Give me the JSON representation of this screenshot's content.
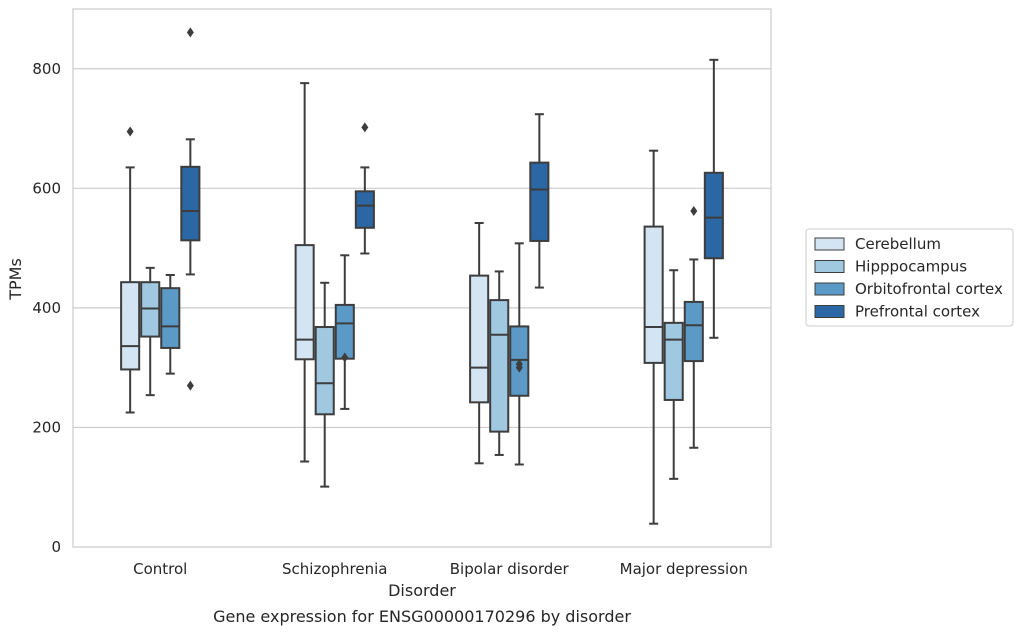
{
  "chart_data": {
    "type": "boxplot",
    "title": "",
    "caption": "Gene expression for ENSG00000170296 by disorder",
    "xlabel": "Disorder",
    "ylabel": "TPMs",
    "ylim": [
      0,
      900
    ],
    "yticks": [
      0,
      200,
      400,
      600,
      800
    ],
    "grid": "horizontal",
    "legend_position": "right",
    "categories": [
      "Control",
      "Schizophrenia",
      "Bipolar disorder",
      "Major depression"
    ],
    "series": [
      {
        "name": "Cerebellum",
        "color": "#d3e4f3",
        "boxes": [
          {
            "whisker_low": 225,
            "q1": 297,
            "median": 336,
            "q3": 443,
            "whisker_high": 635,
            "outliers": [
              695
            ]
          },
          {
            "whisker_low": 143,
            "q1": 314,
            "median": 347,
            "q3": 505,
            "whisker_high": 776,
            "outliers": []
          },
          {
            "whisker_low": 140,
            "q1": 242,
            "median": 300,
            "q3": 454,
            "whisker_high": 542,
            "outliers": []
          },
          {
            "whisker_low": 39,
            "q1": 308,
            "median": 368,
            "q3": 536,
            "whisker_high": 663,
            "outliers": []
          }
        ]
      },
      {
        "name": "Hipppocampus",
        "color": "#a0c8e0",
        "boxes": [
          {
            "whisker_low": 254,
            "q1": 352,
            "median": 399,
            "q3": 443,
            "whisker_high": 467,
            "outliers": []
          },
          {
            "whisker_low": 101,
            "q1": 222,
            "median": 274,
            "q3": 368,
            "whisker_high": 442,
            "outliers": []
          },
          {
            "whisker_low": 154,
            "q1": 193,
            "median": 355,
            "q3": 413,
            "whisker_high": 461,
            "outliers": []
          },
          {
            "whisker_low": 114,
            "q1": 246,
            "median": 347,
            "q3": 375,
            "whisker_high": 463,
            "outliers": []
          }
        ]
      },
      {
        "name": "Orbitofrontal cortex",
        "color": "#5b9ac6",
        "boxes": [
          {
            "whisker_low": 290,
            "q1": 333,
            "median": 369,
            "q3": 433,
            "whisker_high": 455,
            "outliers": []
          },
          {
            "whisker_low": 231,
            "q1": 315,
            "median": 374,
            "q3": 405,
            "whisker_high": 488,
            "outliers": [
              317
            ]
          },
          {
            "whisker_low": 138,
            "q1": 253,
            "median": 313,
            "q3": 369,
            "whisker_high": 508,
            "outliers": [
              300,
              306
            ]
          },
          {
            "whisker_low": 166,
            "q1": 311,
            "median": 371,
            "q3": 410,
            "whisker_high": 481,
            "outliers": [
              562
            ]
          }
        ]
      },
      {
        "name": "Prefrontal cortex",
        "color": "#2b67a4",
        "boxes": [
          {
            "whisker_low": 456,
            "q1": 513,
            "median": 562,
            "q3": 636,
            "whisker_high": 682,
            "outliers": [
              861,
              270
            ]
          },
          {
            "whisker_low": 491,
            "q1": 534,
            "median": 571,
            "q3": 595,
            "whisker_high": 635,
            "outliers": [
              702
            ]
          },
          {
            "whisker_low": 434,
            "q1": 512,
            "median": 598,
            "q3": 643,
            "whisker_high": 724,
            "outliers": []
          },
          {
            "whisker_low": 350,
            "q1": 483,
            "median": 551,
            "q3": 626,
            "whisker_high": 815,
            "outliers": []
          }
        ]
      }
    ]
  }
}
